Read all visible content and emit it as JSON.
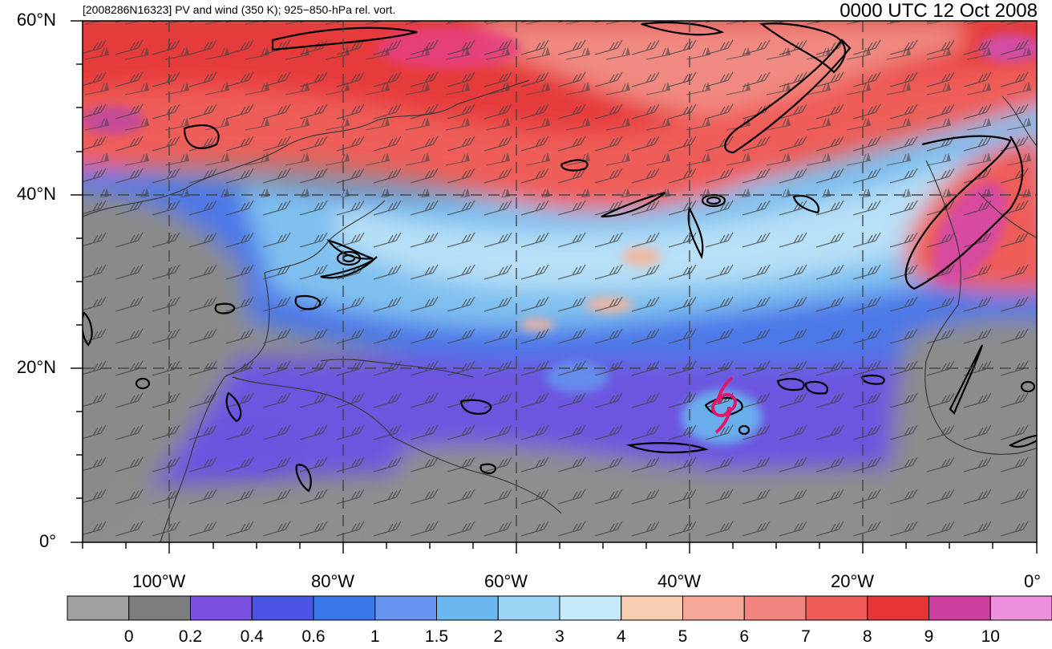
{
  "title": {
    "left": "[2008286N16323] PV and wind (350 K); 925−850-hPa rel. vort.",
    "right": "0000 UTC 12 Oct 2008"
  },
  "axes": {
    "lat_labels": [
      "60°N",
      "40°N",
      "20°N",
      "0°"
    ],
    "lon_labels": [
      "100°W",
      "80°W",
      "60°W",
      "40°W",
      "20°W",
      "0°"
    ]
  },
  "colorbar": {
    "colors": [
      "#a0a0a0",
      "#7d7d7d",
      "#7b4fe0",
      "#4a55e6",
      "#3a78ea",
      "#6593ee",
      "#6ab8ee",
      "#9cd4f5",
      "#c6e9fa",
      "#f8cdb2",
      "#f5a79a",
      "#f2847f",
      "#ee5a56",
      "#e63434",
      "#cc3ea0",
      "#ee90e0"
    ],
    "labels": [
      "0",
      "0.2",
      "0.4",
      "0.6",
      "1",
      "1.5",
      "2",
      "3",
      "4",
      "5",
      "6",
      "7",
      "8",
      "9",
      "10"
    ]
  },
  "storm_symbol": "tropical-cyclone-icon",
  "storm_color": "#e0186c"
}
